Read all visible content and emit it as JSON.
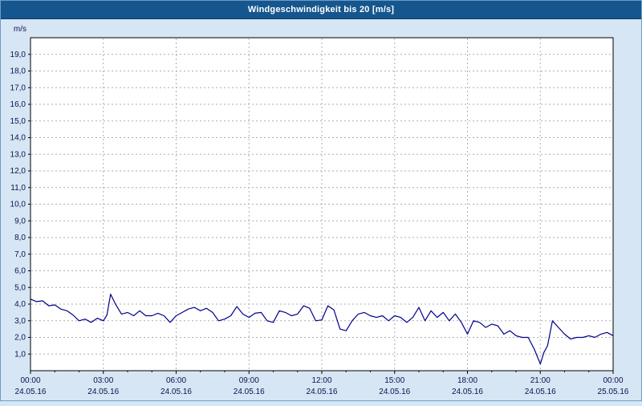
{
  "window": {
    "title": "Windgeschwindigkeit bis 20 [m/s]"
  },
  "colors": {
    "title_bar_bg": "#16568e",
    "title_text": "#ffffff",
    "page_bg": "#d6e6f5",
    "plot_bg": "#ffffff",
    "grid": "#aeaeae",
    "axis": "#000000",
    "line": "#00008b",
    "tick_text": "#10104a"
  },
  "chart_data": {
    "type": "line",
    "title": "Windgeschwindigkeit bis 20 [m/s]",
    "xlabel": "",
    "ylabel": "m/s",
    "ylim": [
      0,
      20
    ],
    "ytick_step": 1,
    "ytick_labels": [
      "1,0",
      "2,0",
      "3,0",
      "4,0",
      "5,0",
      "6,0",
      "7,0",
      "8,0",
      "9,0",
      "10,0",
      "11,0",
      "12,0",
      "13,0",
      "14,0",
      "15,0",
      "16,0",
      "17,0",
      "18,0",
      "19,0"
    ],
    "xlim_hours": [
      0,
      24
    ],
    "xticks": [
      {
        "hour": 0,
        "time": "00:00",
        "date": "24.05.16"
      },
      {
        "hour": 3,
        "time": "03:00",
        "date": "24.05.16"
      },
      {
        "hour": 6,
        "time": "06:00",
        "date": "24.05.16"
      },
      {
        "hour": 9,
        "time": "09:00",
        "date": "24.05.16"
      },
      {
        "hour": 12,
        "time": "12:00",
        "date": "24.05.16"
      },
      {
        "hour": 15,
        "time": "15:00",
        "date": "24.05.16"
      },
      {
        "hour": 18,
        "time": "18:00",
        "date": "24.05.16"
      },
      {
        "hour": 21,
        "time": "21:00",
        "date": "24.05.16"
      },
      {
        "hour": 24,
        "time": "00:00",
        "date": "25.05.16"
      }
    ],
    "grid": "dashed",
    "legend": "none",
    "series": [
      {
        "name": "Windgeschwindigkeit",
        "unit": "m/s",
        "color": "#00008b",
        "points": [
          [
            0,
            4.3
          ],
          [
            0.25,
            4.15
          ],
          [
            0.5,
            4.2
          ],
          [
            0.75,
            3.9
          ],
          [
            1,
            3.95
          ],
          [
            1.25,
            3.7
          ],
          [
            1.5,
            3.6
          ],
          [
            1.75,
            3.35
          ],
          [
            2,
            3.0
          ],
          [
            2.25,
            3.1
          ],
          [
            2.5,
            2.9
          ],
          [
            2.75,
            3.15
          ],
          [
            3,
            3.0
          ],
          [
            3.15,
            3.35
          ],
          [
            3.3,
            4.6
          ],
          [
            3.5,
            4.0
          ],
          [
            3.75,
            3.4
          ],
          [
            4,
            3.5
          ],
          [
            4.25,
            3.3
          ],
          [
            4.5,
            3.6
          ],
          [
            4.75,
            3.3
          ],
          [
            5,
            3.3
          ],
          [
            5.25,
            3.45
          ],
          [
            5.5,
            3.3
          ],
          [
            5.75,
            2.9
          ],
          [
            6,
            3.3
          ],
          [
            6.25,
            3.5
          ],
          [
            6.5,
            3.7
          ],
          [
            6.75,
            3.8
          ],
          [
            7,
            3.6
          ],
          [
            7.25,
            3.75
          ],
          [
            7.5,
            3.5
          ],
          [
            7.75,
            3.0
          ],
          [
            8,
            3.1
          ],
          [
            8.25,
            3.3
          ],
          [
            8.5,
            3.85
          ],
          [
            8.75,
            3.4
          ],
          [
            9,
            3.2
          ],
          [
            9.25,
            3.45
          ],
          [
            9.5,
            3.5
          ],
          [
            9.75,
            3.0
          ],
          [
            10,
            2.9
          ],
          [
            10.25,
            3.6
          ],
          [
            10.5,
            3.5
          ],
          [
            10.75,
            3.3
          ],
          [
            11,
            3.4
          ],
          [
            11.25,
            3.9
          ],
          [
            11.5,
            3.75
          ],
          [
            11.75,
            3.0
          ],
          [
            12,
            3.05
          ],
          [
            12.25,
            3.9
          ],
          [
            12.5,
            3.65
          ],
          [
            12.75,
            2.5
          ],
          [
            13,
            2.4
          ],
          [
            13.25,
            3.0
          ],
          [
            13.5,
            3.4
          ],
          [
            13.75,
            3.5
          ],
          [
            14,
            3.3
          ],
          [
            14.25,
            3.2
          ],
          [
            14.5,
            3.3
          ],
          [
            14.75,
            3.0
          ],
          [
            15,
            3.3
          ],
          [
            15.25,
            3.2
          ],
          [
            15.5,
            2.9
          ],
          [
            15.75,
            3.2
          ],
          [
            16,
            3.8
          ],
          [
            16.25,
            3.0
          ],
          [
            16.5,
            3.6
          ],
          [
            16.75,
            3.2
          ],
          [
            17,
            3.5
          ],
          [
            17.25,
            3.0
          ],
          [
            17.5,
            3.4
          ],
          [
            17.75,
            2.9
          ],
          [
            18,
            2.2
          ],
          [
            18.25,
            3.0
          ],
          [
            18.5,
            2.9
          ],
          [
            18.75,
            2.6
          ],
          [
            19,
            2.8
          ],
          [
            19.25,
            2.7
          ],
          [
            19.5,
            2.2
          ],
          [
            19.75,
            2.4
          ],
          [
            20,
            2.1
          ],
          [
            20.25,
            2.0
          ],
          [
            20.5,
            2.0
          ],
          [
            20.75,
            1.3
          ],
          [
            21,
            0.4
          ],
          [
            21.15,
            1.1
          ],
          [
            21.3,
            1.5
          ],
          [
            21.5,
            3.0
          ],
          [
            21.75,
            2.6
          ],
          [
            22,
            2.2
          ],
          [
            22.25,
            1.9
          ],
          [
            22.5,
            2.0
          ],
          [
            22.75,
            2.0
          ],
          [
            23,
            2.1
          ],
          [
            23.25,
            2.0
          ],
          [
            23.5,
            2.2
          ],
          [
            23.75,
            2.3
          ],
          [
            24,
            2.1
          ]
        ]
      }
    ]
  }
}
